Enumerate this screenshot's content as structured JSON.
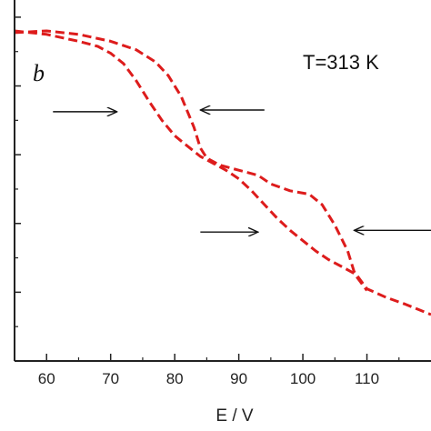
{
  "chart_data": {
    "type": "line",
    "title": "",
    "xlabel": "E / V",
    "ylabel": "",
    "xlim": [
      55,
      120
    ],
    "ylim": [
      0,
      1.05
    ],
    "x_ticks": [
      "60",
      "70",
      "80",
      "90",
      "100",
      "110"
    ],
    "y_tick_values": [
      0,
      0.2,
      0.4,
      0.6,
      0.8,
      1.0
    ],
    "annotations": {
      "panel_label": "b",
      "temperature": "T=313 K"
    },
    "series": [
      {
        "line_style": "dashed",
        "points": [
          [
            55,
            0.96
          ],
          [
            60,
            0.95
          ],
          [
            65,
            0.93
          ],
          [
            68,
            0.915
          ],
          [
            70,
            0.895
          ],
          [
            72,
            0.865
          ],
          [
            74,
            0.815
          ],
          [
            76,
            0.755
          ],
          [
            78,
            0.7
          ],
          [
            80,
            0.655
          ],
          [
            82,
            0.625
          ],
          [
            84,
            0.595
          ],
          [
            86,
            0.575
          ],
          [
            88,
            0.555
          ],
          [
            90,
            0.53
          ],
          [
            92,
            0.495
          ],
          [
            94,
            0.455
          ],
          [
            96,
            0.415
          ],
          [
            98,
            0.38
          ],
          [
            100,
            0.35
          ],
          [
            102,
            0.32
          ],
          [
            104,
            0.295
          ],
          [
            106,
            0.275
          ],
          [
            108,
            0.255
          ],
          [
            110,
            0.205
          ]
        ]
      },
      {
        "line_style": "dashed",
        "points": [
          [
            55,
            0.955
          ],
          [
            60,
            0.96
          ],
          [
            65,
            0.95
          ],
          [
            70,
            0.93
          ],
          [
            74,
            0.905
          ],
          [
            77,
            0.87
          ],
          [
            79,
            0.83
          ],
          [
            81,
            0.77
          ],
          [
            83,
            0.68
          ],
          [
            84,
            0.62
          ],
          [
            85,
            0.59
          ],
          [
            87,
            0.57
          ],
          [
            90,
            0.555
          ],
          [
            93,
            0.54
          ],
          [
            95,
            0.515
          ],
          [
            98,
            0.495
          ],
          [
            101,
            0.485
          ],
          [
            103,
            0.455
          ],
          [
            105,
            0.395
          ],
          [
            107,
            0.32
          ],
          [
            108,
            0.26
          ],
          [
            110,
            0.21
          ],
          [
            113,
            0.185
          ],
          [
            116,
            0.165
          ],
          [
            120,
            0.135
          ]
        ]
      }
    ],
    "arrows": [
      {
        "x_from": 61,
        "x_to": 71,
        "y": 0.725,
        "direction": "right"
      },
      {
        "x_from": 94,
        "x_to": 84,
        "y": 0.73,
        "direction": "left"
      },
      {
        "x_from": 84,
        "x_to": 93,
        "y": 0.375,
        "direction": "right"
      },
      {
        "x_from": 120,
        "x_to": 108,
        "y": 0.38,
        "direction": "left"
      }
    ],
    "colors": {
      "series": "#dd1c1c",
      "axis": "#222222",
      "arrow": "#111111"
    },
    "grid": false
  }
}
